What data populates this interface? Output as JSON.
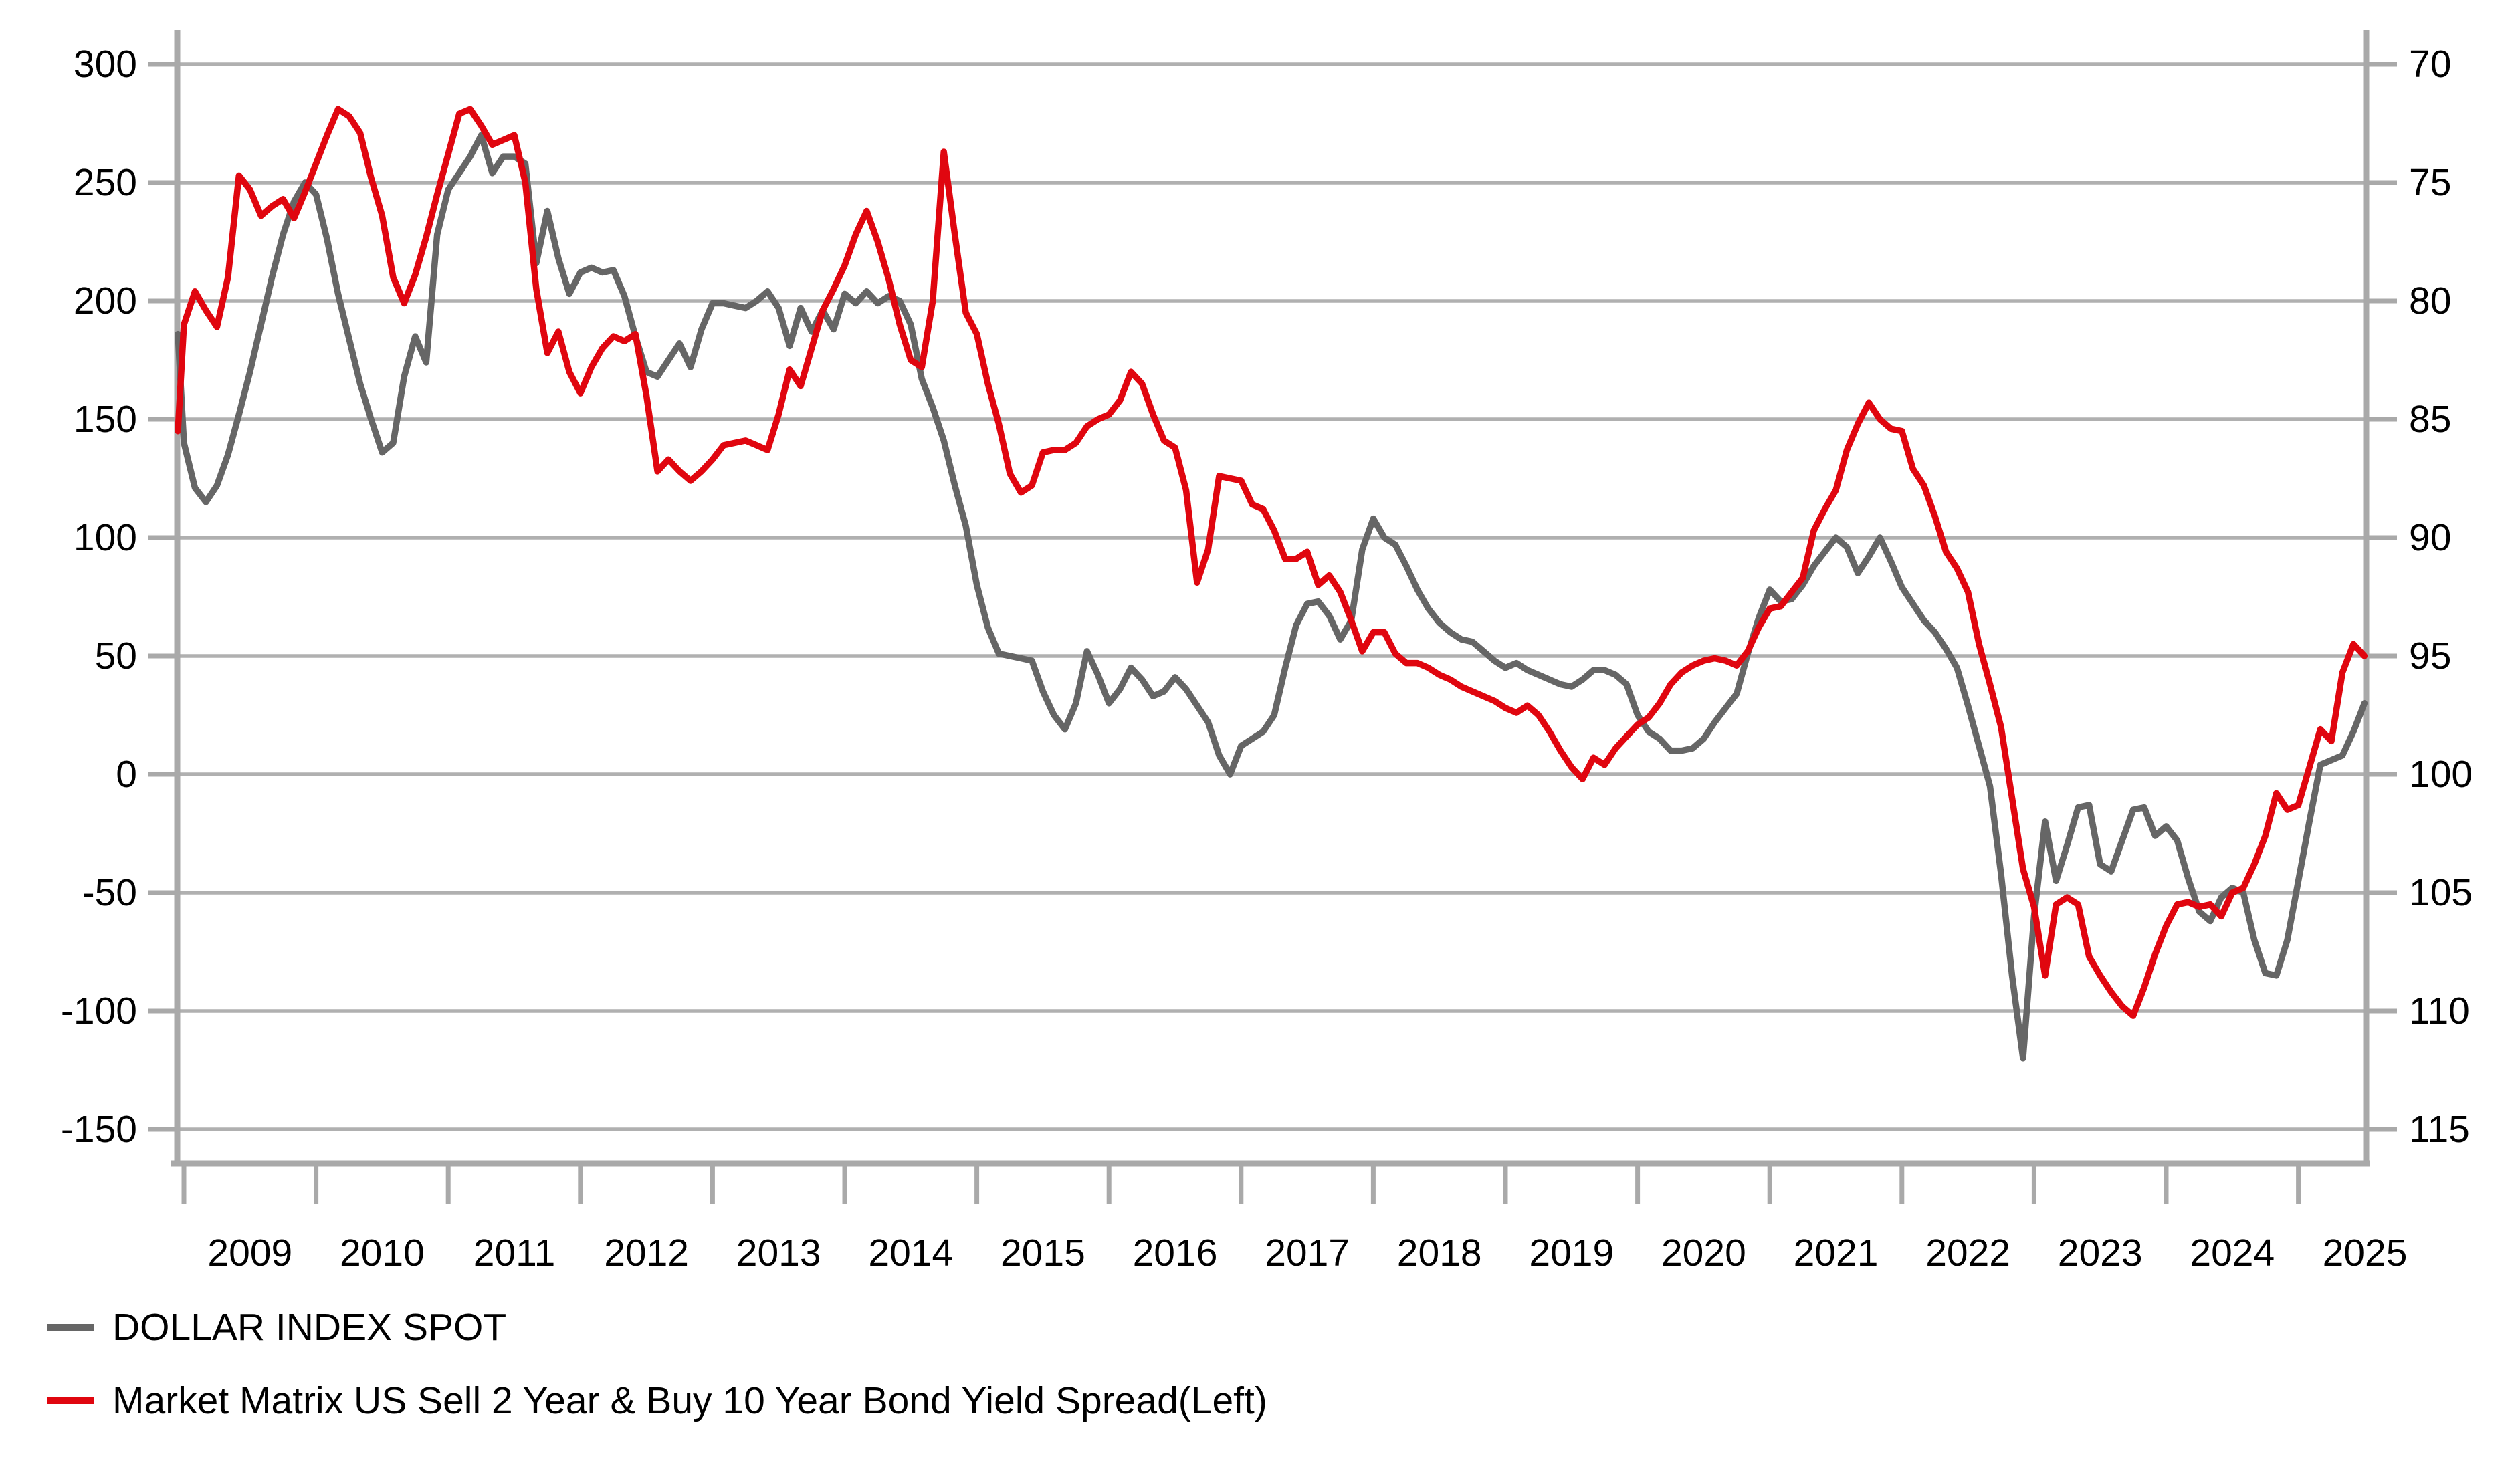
{
  "page": {
    "background": "#ffffff",
    "title": ""
  },
  "legend": {
    "position": "bottom-left",
    "items": [
      {
        "label": "DOLLAR INDEX SPOT",
        "color": "#666666",
        "series_key": "dollar_index_spot"
      },
      {
        "label": "Market Matrix US Sell 2 Year & Buy 10 Year Bond Yield Spread(Left)",
        "color": "#e0060f",
        "series_key": "spread_2s10s"
      }
    ]
  },
  "chart_data": {
    "type": "line",
    "title": "",
    "xlabel": "",
    "ylabel_left": "",
    "ylabel_right": "",
    "grid": true,
    "colors": {
      "grid": "#b0b0b0",
      "spine": "#a9a9a9",
      "tick": "#a9a9a9",
      "text": "#000000"
    },
    "x_axis": {
      "tick_years": [
        2009,
        2010,
        2011,
        2012,
        2013,
        2014,
        2015,
        2016,
        2017,
        2018,
        2019,
        2020,
        2021,
        2022,
        2023,
        2024,
        2025
      ],
      "data_start": "2008-12",
      "data_end": "2025-07",
      "frequency": "monthly"
    },
    "left_axis": {
      "ticks": [
        300,
        250,
        200,
        150,
        100,
        50,
        0,
        -50,
        -100,
        -150
      ],
      "min": -150,
      "max": 300
    },
    "right_axis": {
      "ticks": [
        70,
        75,
        80,
        85,
        90,
        95,
        100,
        105,
        110,
        115
      ],
      "top_value": 70,
      "bottom_value": 115,
      "inverted": true,
      "relation_to_left": "right_value = 100 - left_value/10"
    },
    "series": [
      {
        "name": "Market Matrix US Sell 2 Year & Buy 10 Year Bond Yield Spread(Left)",
        "legend_key": "spread_2s10s",
        "color": "#e0060f",
        "axis": "left",
        "unit": "bp",
        "start": "2008-12",
        "freq": "monthly",
        "values": [
          145,
          190,
          204,
          196,
          189,
          210,
          253,
          247,
          236,
          240,
          243,
          235,
          246,
          258,
          270,
          281,
          278,
          271,
          252,
          236,
          210,
          199,
          211,
          227,
          245,
          262,
          279,
          281,
          274,
          266,
          268,
          270,
          250,
          205,
          178,
          187,
          170,
          161,
          172,
          180,
          185,
          183,
          186,
          160,
          128,
          133,
          128,
          124,
          128,
          133,
          139,
          140,
          141,
          139,
          137,
          152,
          171,
          164,
          180,
          196,
          205,
          215,
          228,
          238,
          225,
          209,
          190,
          175,
          172,
          200,
          263,
          228,
          195,
          186,
          165,
          148,
          127,
          119,
          122,
          136,
          137,
          137,
          140,
          147,
          150,
          152,
          158,
          170,
          165,
          152,
          141,
          138,
          120,
          81,
          95,
          126,
          125,
          124,
          114,
          112,
          103,
          91,
          91,
          94,
          80,
          84,
          77,
          65,
          52,
          60,
          60,
          51,
          47,
          47,
          45,
          42,
          40,
          37,
          35,
          33,
          31,
          28,
          26,
          29,
          25,
          18,
          10,
          3,
          -2,
          7,
          4,
          11,
          16,
          21,
          24,
          30,
          38,
          43,
          46,
          48,
          49,
          48,
          46,
          52,
          62,
          70,
          71,
          77,
          83,
          103,
          112,
          120,
          137,
          148,
          157,
          150,
          146,
          145,
          129,
          122,
          109,
          94,
          87,
          77,
          55,
          38,
          20,
          -10,
          -40,
          -56,
          -85,
          -55,
          -52,
          -55,
          -77,
          -85,
          -92,
          -98,
          -102,
          -90,
          -76,
          -64,
          -55,
          -54,
          -56,
          -55,
          -60,
          -50,
          -48,
          -38,
          -26,
          -8,
          -15,
          -13,
          3,
          19,
          14,
          43,
          55,
          50
        ]
      },
      {
        "name": "DOLLAR INDEX SPOT",
        "legend_key": "dollar_index_spot",
        "color": "#666666",
        "axis": "left_plotted_right_labeled",
        "unit": "index (right axis: DXY = 100 - left/10)",
        "start": "2008-12",
        "freq": "monthly",
        "values": [
          186,
          140,
          121,
          115,
          122,
          135,
          152,
          170,
          190,
          210,
          228,
          242,
          250,
          245,
          226,
          203,
          184,
          165,
          150,
          136,
          140,
          168,
          185,
          174,
          228,
          247,
          254,
          261,
          270,
          254,
          261,
          261,
          258,
          216,
          238,
          218,
          203,
          212,
          214,
          212,
          213,
          202,
          185,
          170,
          168,
          175,
          182,
          172,
          188,
          199,
          199,
          198,
          197,
          200,
          204,
          197,
          181,
          197,
          187,
          196,
          188,
          203,
          199,
          204,
          199,
          202,
          200,
          190,
          167,
          155,
          141,
          122,
          105,
          80,
          62,
          51,
          50,
          49,
          48,
          35,
          25,
          19,
          30,
          52,
          42,
          30,
          36,
          45,
          40,
          33,
          35,
          41,
          36,
          29,
          22,
          8,
          0,
          12,
          15,
          18,
          25,
          45,
          63,
          72,
          73,
          67,
          57,
          65,
          95,
          108,
          100,
          97,
          88,
          78,
          70,
          64,
          60,
          57,
          56,
          52,
          48,
          45,
          47,
          44,
          42,
          40,
          38,
          37,
          40,
          44,
          44,
          42,
          38,
          25,
          18,
          15,
          10,
          10,
          11,
          15,
          22,
          28,
          34,
          51,
          66,
          78,
          73,
          74,
          80,
          88,
          94,
          100,
          96,
          85,
          92,
          100,
          90,
          79,
          72,
          65,
          60,
          53,
          45,
          29,
          12,
          -5,
          -42,
          -85,
          -120,
          -60,
          -20,
          -45,
          -30,
          -14,
          -13,
          -38,
          -41,
          -28,
          -15,
          -14,
          -26,
          -22,
          -28,
          -44,
          -58,
          -62,
          -52,
          -48,
          -50,
          -70,
          -84,
          -85,
          -70,
          -45,
          -20,
          4,
          6,
          8,
          18,
          30
        ]
      }
    ]
  }
}
